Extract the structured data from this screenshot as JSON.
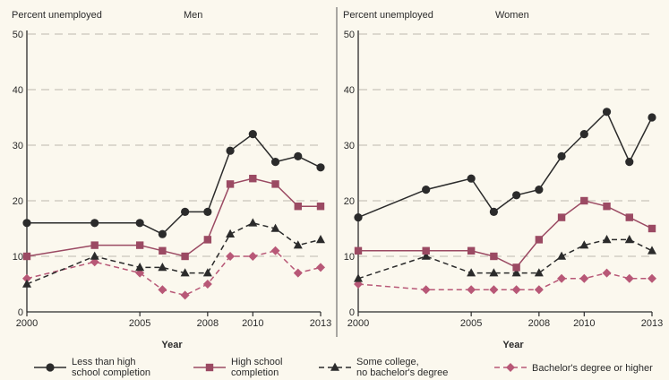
{
  "chart_data": [
    {
      "type": "line",
      "title": "Men",
      "ylabel": "Percent unemployed",
      "xlabel": "Year",
      "ylim": [
        0,
        50
      ],
      "yticks": [
        0,
        10,
        20,
        30,
        40,
        50
      ],
      "xlim": [
        2000,
        2013
      ],
      "xticks": [
        2000,
        2005,
        2008,
        2010,
        2013
      ],
      "x": [
        2000,
        2003,
        2005,
        2006,
        2007,
        2008,
        2009,
        2010,
        2011,
        2012,
        2013
      ],
      "grid": "horizontal dashed",
      "series": [
        {
          "name": "Less than high school completion",
          "values": [
            16,
            16,
            16,
            14,
            18,
            18,
            29,
            32,
            27,
            28,
            26
          ]
        },
        {
          "name": "High school completion",
          "values": [
            10,
            12,
            12,
            11,
            10,
            13,
            23,
            24,
            23,
            19,
            19
          ]
        },
        {
          "name": "Some college, no bachelor's degree",
          "values": [
            5,
            10,
            8,
            8,
            7,
            7,
            14,
            16,
            15,
            12,
            13
          ]
        },
        {
          "name": "Bachelor's degree or higher",
          "values": [
            6,
            9,
            7,
            4,
            3,
            5,
            10,
            10,
            11,
            7,
            8
          ]
        }
      ]
    },
    {
      "type": "line",
      "title": "Women",
      "ylabel": "Percent unemployed",
      "xlabel": "Year",
      "ylim": [
        0,
        50
      ],
      "yticks": [
        0,
        10,
        20,
        30,
        40,
        50
      ],
      "xlim": [
        2000,
        2013
      ],
      "xticks": [
        2000,
        2005,
        2008,
        2010,
        2013
      ],
      "x": [
        2000,
        2003,
        2005,
        2006,
        2007,
        2008,
        2009,
        2010,
        2011,
        2012,
        2013
      ],
      "grid": "horizontal dashed",
      "series": [
        {
          "name": "Less than high school completion",
          "values": [
            17,
            22,
            24,
            18,
            21,
            22,
            28,
            32,
            36,
            27,
            35
          ]
        },
        {
          "name": "High school completion",
          "values": [
            11,
            11,
            11,
            10,
            8,
            13,
            17,
            20,
            19,
            17,
            15
          ]
        },
        {
          "name": "Some college, no bachelor's degree",
          "values": [
            6,
            10,
            7,
            7,
            7,
            7,
            10,
            12,
            13,
            13,
            11
          ]
        },
        {
          "name": "Bachelor's degree or higher",
          "values": [
            5,
            4,
            4,
            4,
            4,
            4,
            6,
            6,
            7,
            6,
            6
          ]
        }
      ]
    }
  ],
  "legend": {
    "placement": "bottom",
    "items": [
      {
        "label_lines": [
          "Less than high",
          "school completion"
        ],
        "color": "#2b2b2b",
        "marker": "circle",
        "dash": "solid"
      },
      {
        "label_lines": [
          "High school",
          "completion"
        ],
        "color": "#9b4a63",
        "marker": "square",
        "dash": "solid"
      },
      {
        "label_lines": [
          "Some college,",
          "no bachelor's degree"
        ],
        "color": "#2b2b2b",
        "marker": "triangle",
        "dash": "dashed"
      },
      {
        "label_lines": [
          "Bachelor's degree or higher"
        ],
        "color": "#b85877",
        "marker": "diamond",
        "dash": "dashed"
      }
    ]
  },
  "colors": {
    "background": "#fbf8ee",
    "axis": "#2b2b2b",
    "grid": "#bdb8ad",
    "divider": "#555555"
  }
}
